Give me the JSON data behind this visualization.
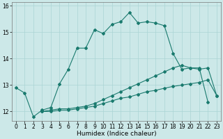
{
  "xlabel": "Humidex (Indice chaleur)",
  "bg_color": "#cce8e8",
  "line_color": "#1a7a6e",
  "xlim": [
    -0.5,
    23.5
  ],
  "ylim": [
    11.65,
    16.15
  ],
  "yticks": [
    12,
    13,
    14,
    15,
    16
  ],
  "xticks": [
    0,
    1,
    2,
    3,
    4,
    5,
    6,
    7,
    8,
    9,
    10,
    11,
    12,
    13,
    14,
    15,
    16,
    17,
    18,
    19,
    20,
    21,
    22,
    23
  ],
  "series1_x": [
    0,
    1,
    2,
    3,
    4,
    5,
    6,
    7,
    8,
    9,
    10,
    11,
    12,
    13,
    14,
    15,
    16,
    17,
    18,
    19,
    20,
    21,
    22
  ],
  "series1_y": [
    12.9,
    12.7,
    11.8,
    12.05,
    12.15,
    13.05,
    13.6,
    14.4,
    14.4,
    15.1,
    14.95,
    15.3,
    15.4,
    15.75,
    15.35,
    15.4,
    15.35,
    15.25,
    14.2,
    13.6,
    13.65,
    13.65,
    12.35
  ],
  "series2_x": [
    3,
    4,
    5,
    6,
    7,
    8,
    9,
    10,
    11,
    12,
    13,
    14,
    15,
    16,
    17,
    18,
    19,
    20,
    21,
    22,
    23
  ],
  "series2_y": [
    12.0,
    12.05,
    12.1,
    12.1,
    12.15,
    12.2,
    12.3,
    12.45,
    12.6,
    12.75,
    12.9,
    13.05,
    13.2,
    13.35,
    13.5,
    13.65,
    13.75,
    13.65,
    13.6,
    13.65,
    12.6
  ],
  "series3_x": [
    3,
    4,
    5,
    6,
    7,
    8,
    9,
    10,
    11,
    12,
    13,
    14,
    15,
    16,
    17,
    18,
    19,
    20,
    21,
    22,
    23
  ],
  "series3_y": [
    12.0,
    12.0,
    12.05,
    12.05,
    12.1,
    12.15,
    12.2,
    12.3,
    12.4,
    12.5,
    12.55,
    12.65,
    12.75,
    12.8,
    12.88,
    12.95,
    13.0,
    13.05,
    13.1,
    13.2,
    12.6
  ],
  "grid_color": "#aad4d4",
  "xlabel_fontsize": 6.5,
  "tick_fontsize": 5.5,
  "marker_size": 2.0,
  "line_width": 0.8
}
